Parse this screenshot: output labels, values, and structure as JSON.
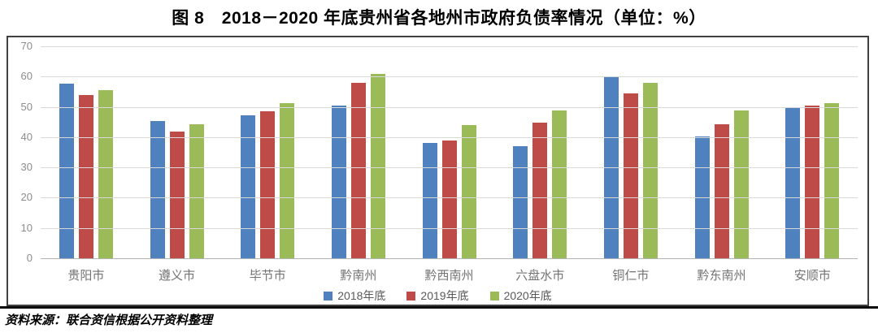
{
  "title": "图 8　2018－2020 年底贵州省各地州市政府负债率情况（单位：%）",
  "source_note": "资料来源：联合资信根据公开资料整理",
  "chart_data": {
    "type": "bar",
    "title": "图 8　2018－2020 年底贵州省各地州市政府负债率情况（单位：%）",
    "categories": [
      "贵阳市",
      "遵义市",
      "毕节市",
      "黔南州",
      "黔西南州",
      "六盘水市",
      "铜仁市",
      "黔东南州",
      "安顺市"
    ],
    "series": [
      {
        "name": "2018年底",
        "color": "#4E81BD",
        "values": [
          57.7,
          45.3,
          47.2,
          50.4,
          38.0,
          37.1,
          60.1,
          40.1,
          49.9
        ]
      },
      {
        "name": "2019年底",
        "color": "#BE4B48",
        "values": [
          54.0,
          41.8,
          48.5,
          58.0,
          39.0,
          44.8,
          54.4,
          44.3,
          50.5
        ]
      },
      {
        "name": "2020年底",
        "color": "#9BBB59",
        "values": [
          55.4,
          44.3,
          51.2,
          61.0,
          43.9,
          48.8,
          58.0,
          48.7,
          51.2
        ]
      }
    ],
    "xlabel": "",
    "ylabel": "",
    "ylim": [
      0,
      70
    ],
    "yticks": [
      0,
      10,
      20,
      30,
      40,
      50,
      60,
      70
    ],
    "grid": true,
    "legend_position": "bottom"
  }
}
